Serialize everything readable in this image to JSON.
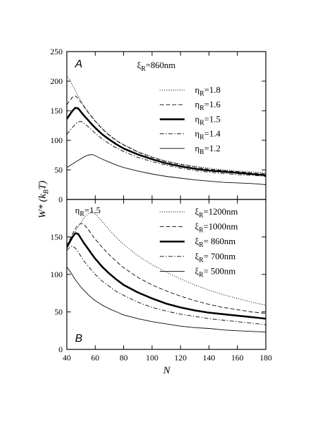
{
  "chart_data": [
    {
      "type": "line",
      "panel_label": "A",
      "annotation": {
        "symbol": "ξ",
        "sub": "R",
        "text": "=860nm"
      },
      "x": [
        40,
        42,
        44,
        46,
        48,
        50,
        52,
        55,
        58,
        60,
        65,
        70,
        75,
        80,
        90,
        100,
        110,
        120,
        130,
        140,
        150,
        160,
        170,
        180
      ],
      "ylim": [
        0,
        250
      ],
      "xlim": [
        40,
        180
      ],
      "xticks": [
        40,
        60,
        80,
        100,
        120,
        140,
        160,
        180
      ],
      "yticks": [
        0,
        50,
        100,
        150,
        200,
        250
      ],
      "ylabel": "W* (kBT)",
      "series": [
        {
          "name": {
            "symbol": "η",
            "sub": "R",
            "text": "=1.8"
          },
          "style": "dotted",
          "width": 0.9,
          "values": [
            210,
            202,
            193,
            184,
            175,
            167,
            159,
            148,
            139,
            133,
            120,
            109,
            100,
            93,
            81,
            72,
            65,
            60,
            56,
            53,
            50,
            48,
            47,
            45
          ]
        },
        {
          "name": {
            "symbol": "η",
            "sub": "R",
            "text": "=1.6"
          },
          "style": "dashed",
          "width": 0.9,
          "values": [
            160,
            167,
            173,
            175,
            171,
            164,
            157,
            147,
            138,
            132,
            119,
            108,
            99,
            92,
            80,
            71,
            64,
            59,
            55,
            51,
            49,
            47,
            45,
            43
          ]
        },
        {
          "name": {
            "symbol": "η",
            "sub": "R",
            "text": "=1.5"
          },
          "style": "solid",
          "width": 2.6,
          "values": [
            136,
            143,
            150,
            155,
            154,
            148,
            142,
            134,
            126,
            121,
            110,
            101,
            93,
            86,
            76,
            68,
            61,
            56,
            52,
            49,
            47,
            45,
            43,
            41
          ]
        },
        {
          "name": {
            "symbol": "η",
            "sub": "R",
            "text": "=1.4"
          },
          "style": "dashdot",
          "width": 0.9,
          "values": [
            110,
            116,
            122,
            127,
            131,
            132,
            129,
            123,
            116,
            112,
            102,
            94,
            87,
            81,
            71,
            64,
            58,
            53,
            49,
            46,
            44,
            42,
            41,
            39
          ]
        },
        {
          "name": {
            "symbol": "η",
            "sub": "R",
            "text": "=1.2"
          },
          "style": "solid",
          "width": 0.9,
          "values": [
            54,
            57,
            60,
            63,
            66,
            69,
            72,
            75,
            76,
            74,
            68,
            63,
            58,
            54,
            48,
            43,
            39,
            36,
            33,
            31,
            29,
            28,
            27,
            25
          ]
        }
      ]
    },
    {
      "type": "line",
      "panel_label": "B",
      "annotation": {
        "symbol": "η",
        "sub": "R",
        "text": "=1.5"
      },
      "x": [
        40,
        42,
        44,
        46,
        48,
        50,
        52,
        55,
        58,
        60,
        65,
        70,
        75,
        80,
        90,
        100,
        110,
        120,
        130,
        140,
        150,
        160,
        170,
        180
      ],
      "ylim": [
        0,
        200
      ],
      "xlim": [
        40,
        180
      ],
      "xticks": [
        40,
        60,
        80,
        100,
        120,
        140,
        160,
        180
      ],
      "yticks": [
        0,
        50,
        100,
        150
      ],
      "xlabel": "N",
      "series": [
        {
          "name": {
            "symbol": "ξ",
            "sub": "R",
            "text": "=1200nm"
          },
          "style": "dotted",
          "width": 0.9,
          "values": [
            140,
            145,
            151,
            157,
            163,
            169,
            175,
            181,
            184,
            181,
            170,
            159,
            149,
            140,
            125,
            113,
            103,
            94,
            86,
            79,
            73,
            68,
            63,
            59
          ]
        },
        {
          "name": {
            "symbol": "ξ",
            "sub": "R",
            "text": "=1000nm"
          },
          "style": "dashed",
          "width": 0.9,
          "values": [
            138,
            146,
            154,
            161,
            166,
            168,
            167,
            160,
            152,
            147,
            136,
            126,
            117,
            109,
            96,
            86,
            78,
            71,
            65,
            60,
            56,
            53,
            50,
            48
          ]
        },
        {
          "name": {
            "symbol": "ξ",
            "sub": "R",
            "text": "= 860nm"
          },
          "style": "solid",
          "width": 2.6,
          "values": [
            136,
            143,
            150,
            155,
            154,
            148,
            142,
            134,
            126,
            121,
            110,
            101,
            93,
            86,
            76,
            68,
            61,
            56,
            52,
            49,
            47,
            45,
            43,
            41
          ]
        },
        {
          "name": {
            "symbol": "ξ",
            "sub": "R",
            "text": "= 700nm"
          },
          "style": "dashdot",
          "width": 0.9,
          "values": [
            132,
            136,
            138,
            135,
            130,
            124,
            118,
            111,
            104,
            100,
            91,
            84,
            77,
            72,
            63,
            56,
            51,
            47,
            44,
            41,
            39,
            37,
            35,
            33
          ]
        },
        {
          "name": {
            "symbol": "ξ",
            "sub": "R",
            "text": "= 500nm"
          },
          "style": "solid",
          "width": 0.9,
          "values": [
            110,
            105,
            99,
            93,
            88,
            83,
            79,
            73,
            68,
            65,
            59,
            54,
            50,
            46,
            41,
            37,
            34,
            31,
            29,
            28,
            26,
            25,
            24,
            23
          ]
        }
      ]
    }
  ]
}
